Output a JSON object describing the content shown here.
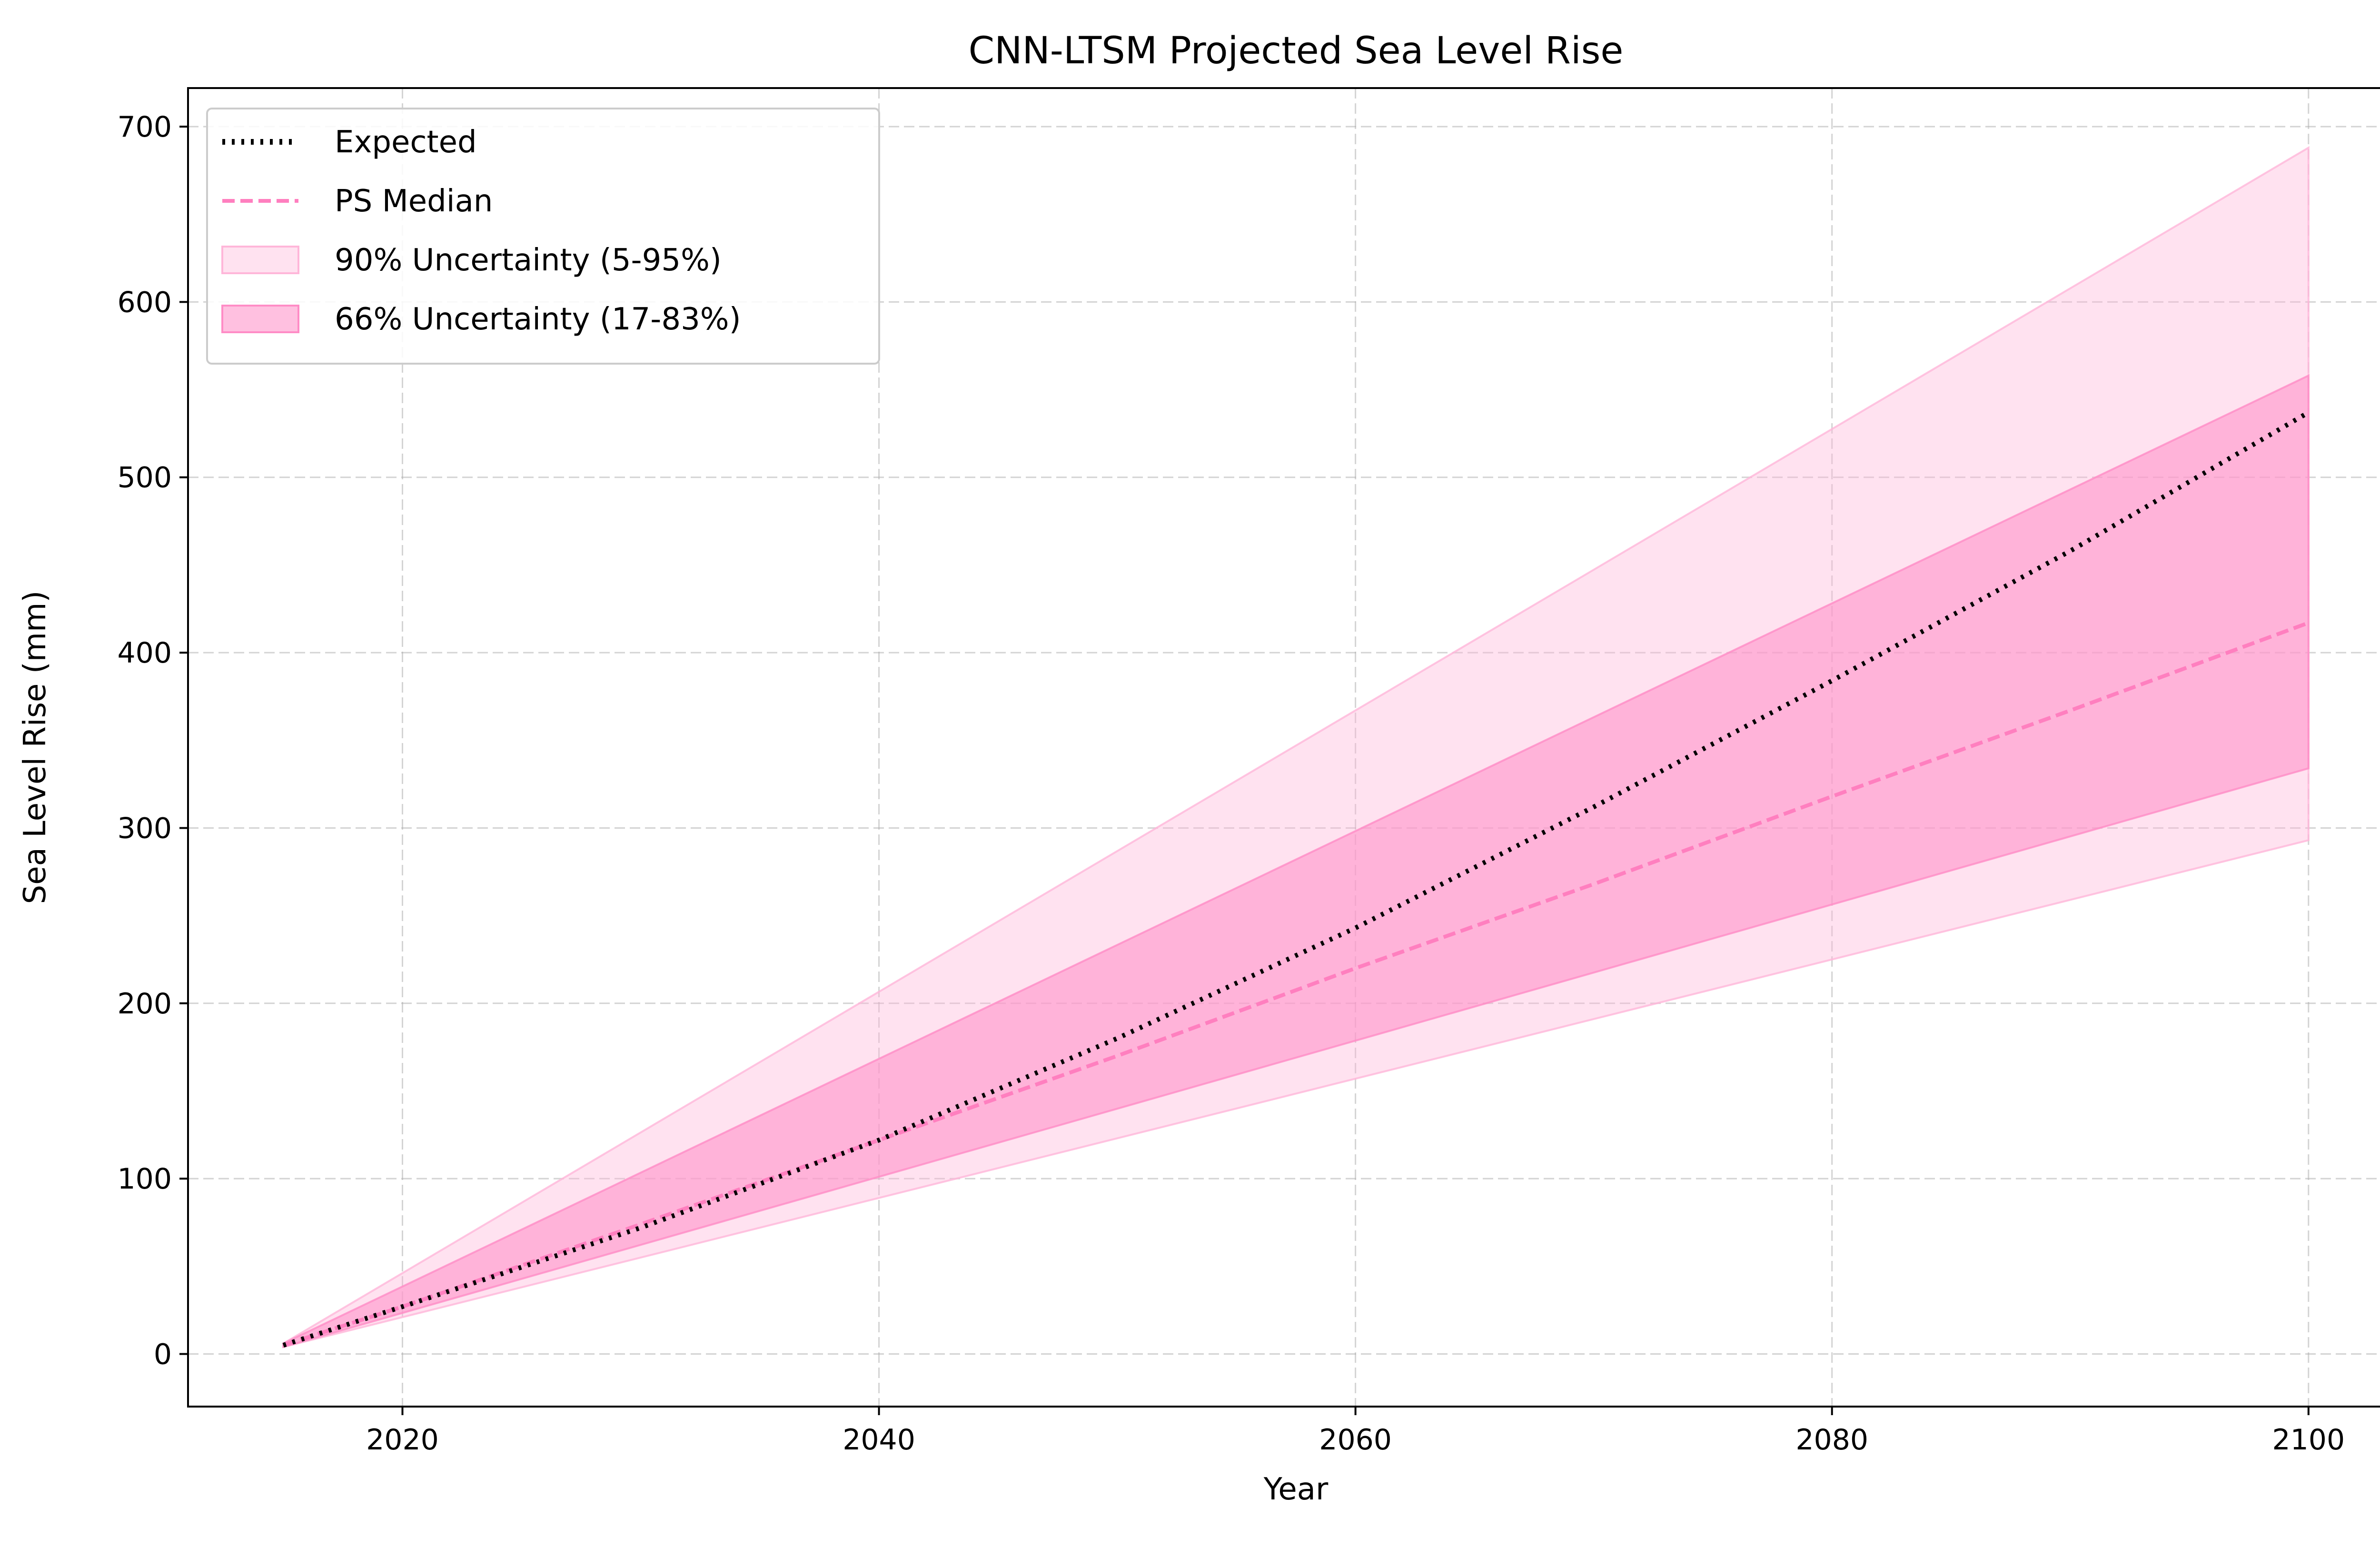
{
  "chart_data": {
    "type": "line",
    "title": "CNN-LTSM Projected Sea Level Rise",
    "xlabel": "Year",
    "ylabel": "Sea Level Rise (mm)",
    "xlim": [
      2011,
      2104
    ],
    "ylim": [
      -30,
      722
    ],
    "xticks": [
      2020,
      2040,
      2060,
      2080,
      2100
    ],
    "yticks": [
      0,
      100,
      200,
      300,
      400,
      500,
      600,
      700
    ],
    "grid": true,
    "legend_position": "upper-left",
    "x": [
      2015,
      2020,
      2030,
      2040,
      2050,
      2060,
      2070,
      2080,
      2090,
      2100
    ],
    "series": [
      {
        "name": "Expected",
        "style": "dotted",
        "color": "#000000",
        "values": [
          5,
          27,
          72,
          122,
          180,
          243,
          312,
          384,
          458,
          537
        ]
      },
      {
        "name": "PS Median",
        "style": "dashed",
        "color": "#ff7fbf",
        "values": [
          5,
          27,
          74,
          122,
          170,
          220,
          268,
          318,
          367,
          417
        ]
      }
    ],
    "bands": [
      {
        "name": "90% Uncertainty (5-95%)",
        "color": "#ffb6d9",
        "opacity": 0.4,
        "x": [
          2015,
          2100
        ],
        "lower": [
          4,
          293
        ],
        "upper": [
          6,
          688
        ]
      },
      {
        "name": "66% Uncertainty (17-83%)",
        "color": "#ff8cc6",
        "opacity": 0.55,
        "x": [
          2015,
          2100
        ],
        "lower": [
          4,
          334
        ],
        "upper": [
          6,
          558
        ]
      }
    ]
  }
}
